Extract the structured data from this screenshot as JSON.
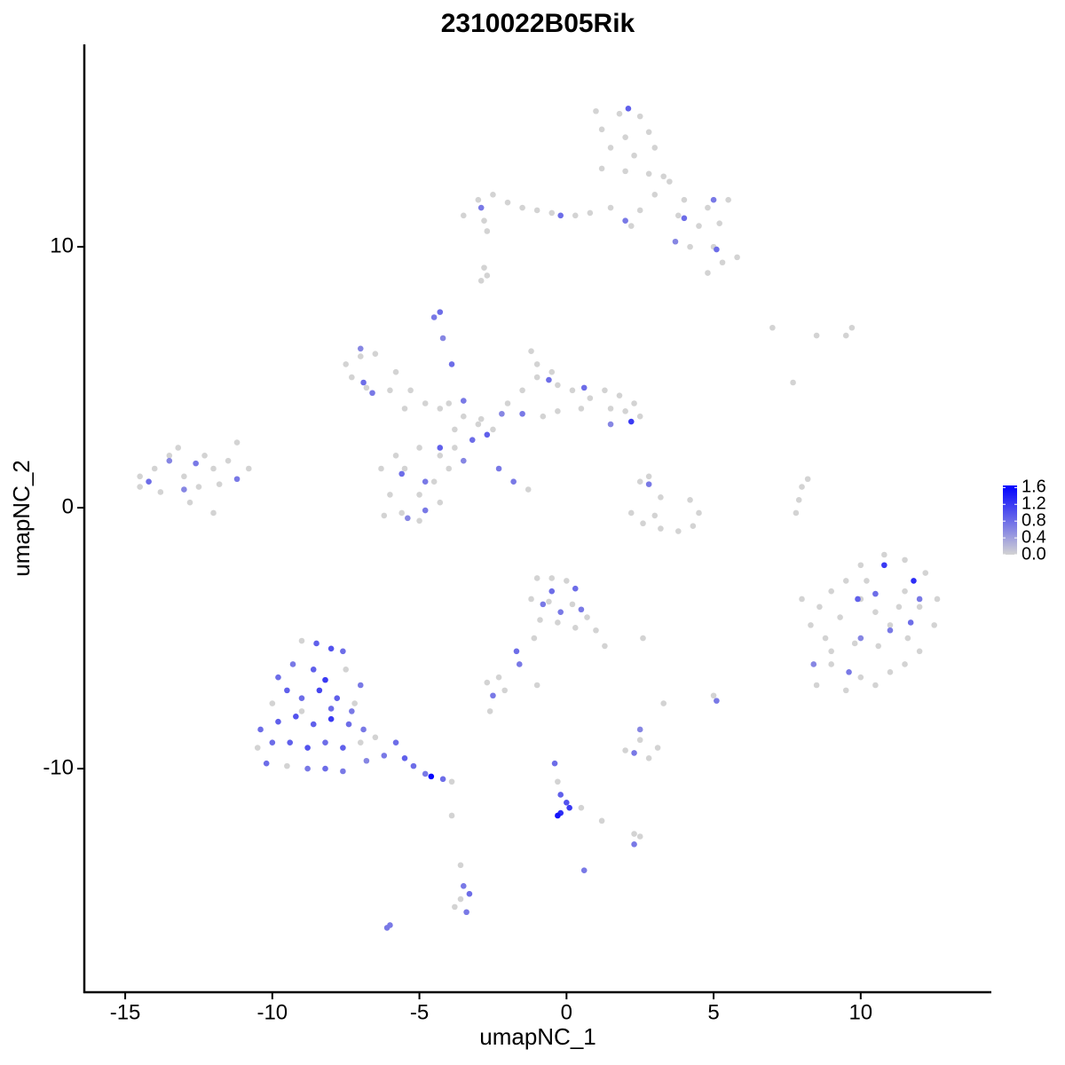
{
  "chart_data": {
    "type": "scatter",
    "title": "2310022B05Rik",
    "x_label": "umapNC_1",
    "y_label": "umapNC_2",
    "xlim": [
      -16.39,
      14.44
    ],
    "ylim": [
      -18.57,
      17.76
    ],
    "xticks": [
      -15,
      -10,
      -5,
      0,
      5,
      10
    ],
    "yticks": [
      -10,
      0,
      10
    ],
    "color_low": "#D3D3D3",
    "color_high": "#0000FF",
    "colorlim": [
      0,
      1.65
    ],
    "colorticks": [
      {
        "value": 0,
        "label": "0.0"
      },
      0.4,
      0.8,
      1.2,
      1.6
    ],
    "x": [
      1.0,
      1.8,
      2.5,
      1.2,
      2.0,
      2.8,
      1.5,
      2.3,
      3.0,
      1.2,
      2.0,
      2.8,
      3.5,
      3.0,
      4.0,
      4.8,
      5.5,
      3.8,
      4.5,
      5.2,
      1.5,
      2.5,
      2.2,
      4.2,
      5.0,
      5.8,
      5.3,
      4.8,
      3.3,
      0.8,
      2.1,
      2.0,
      4.0,
      3.7,
      5.0,
      5.1,
      -3.5,
      -3.0,
      -2.5,
      -2.0,
      -1.5,
      -1.0,
      -0.5,
      -2.8,
      -2.7,
      0.3,
      -2.9,
      -0.2,
      -2.9,
      -2.7,
      -2.8,
      -7.5,
      -7.0,
      -6.5,
      -7.3,
      -6.8,
      -6.0,
      -5.8,
      -5.3,
      -4.8,
      -4.3,
      -5.5,
      -6.9,
      -6.6,
      -7.0,
      -4.5,
      -4.3,
      -4.2,
      -3.9,
      -4.0,
      -3.5,
      -3.0,
      -2.5,
      -3.8,
      -3.2,
      -2.7,
      -3.5,
      -2.9,
      -2.0,
      -1.5,
      -1.0,
      -1.2,
      -1.0,
      -0.5,
      -0.3,
      0.2,
      0.8,
      1.3,
      1.8,
      2.3,
      2.5,
      2.0,
      1.5,
      0.5,
      -0.8,
      -0.3,
      -1.5,
      -0.6,
      0.6,
      2.2,
      1.5,
      -2.2,
      -6.3,
      -6.0,
      -5.5,
      -5.0,
      -4.5,
      -4.0,
      -4.3,
      -5.0,
      -5.8,
      -5.6,
      -5.0,
      -4.3,
      -6.2,
      -3.8,
      -5.6,
      -4.8,
      -4.3,
      -5.4,
      -4.8,
      -3.5,
      -2.3,
      -1.8,
      -1.3,
      -14.5,
      -14.0,
      -13.5,
      -13.0,
      -12.5,
      -12.0,
      -11.5,
      -11.2,
      -14.5,
      -13.8,
      -12.8,
      -12.3,
      -11.8,
      -13.2,
      -10.8,
      -12.0,
      -14.2,
      -13.5,
      -12.6,
      -13.0,
      -11.2,
      2.5,
      2.8,
      3.2,
      2.2,
      2.6,
      3.2,
      3.8,
      4.3,
      4.5,
      4.2,
      3.0,
      2.8,
      8.0,
      8.2,
      7.9,
      7.8,
      7.0,
      8.5,
      9.7,
      9.5,
      7.7,
      8.0,
      8.3,
      8.8,
      9.0,
      8.5,
      9.5,
      10.0,
      10.5,
      11.0,
      11.5,
      12.0,
      12.5,
      12.6,
      12.2,
      11.5,
      10.8,
      10.0,
      9.5,
      9.0,
      10.0,
      10.5,
      11.0,
      11.5,
      9.3,
      9.8,
      10.6,
      11.6,
      10.2,
      8.6,
      12.0,
      9.0,
      11.3,
      10.8,
      11.8,
      10.5,
      9.9,
      11.0,
      11.7,
      9.6,
      10.0,
      8.4,
      12.0,
      -9.0,
      -8.5,
      -8.0,
      -7.6,
      -9.8,
      -9.3,
      -8.6,
      -8.2,
      -7.5,
      -7.0,
      -10.0,
      -9.5,
      -9.0,
      -8.4,
      -7.8,
      -7.2,
      -10.4,
      -9.8,
      -9.2,
      -8.6,
      -8.0,
      -7.4,
      -6.9,
      -10.5,
      -10.0,
      -9.4,
      -8.8,
      -8.2,
      -7.6,
      -7.0,
      -10.2,
      -9.5,
      -8.8,
      -8.2,
      -7.6,
      -9.0,
      -8.0,
      -7.3,
      -6.5,
      -6.2,
      -5.8,
      -5.5,
      -5.2,
      -4.8,
      -4.6,
      -4.2,
      -3.9,
      -6.8,
      -1.0,
      -0.5,
      0,
      -1.2,
      -0.6,
      0.2,
      0.7,
      1.0,
      1.3,
      -0.9,
      -0.3,
      0.3,
      -0.5,
      0.3,
      -0.8,
      0.5,
      -0.2,
      -1.1,
      -1.6,
      -1.7,
      -2.7,
      -2.3,
      -2.1,
      -2.5,
      -1.0,
      -2.6,
      2.0,
      2.5,
      2.8,
      3.1,
      2.3,
      2.5,
      3.3,
      2.6,
      5.0,
      5.1,
      -0.4,
      -0.3,
      -0.2,
      0,
      -0.2,
      -0.3,
      0.1,
      0.5,
      1.2,
      2.3,
      2.5,
      2.3,
      -3.6,
      -3.5,
      -3.3,
      -3.6,
      -3.4,
      -3.8,
      0.6,
      -6.1,
      -6.0,
      -3.9
    ],
    "y": [
      15.2,
      15.1,
      15.0,
      14.5,
      14.2,
      14.4,
      13.8,
      13.5,
      13.8,
      13.0,
      12.9,
      12.8,
      12.5,
      12.0,
      11.8,
      11.5,
      11.8,
      11.2,
      10.8,
      10.9,
      11.5,
      11.4,
      10.8,
      10.0,
      10.0,
      9.6,
      9.4,
      9.0,
      12.7,
      11.3,
      15.3,
      11.0,
      11.1,
      10.2,
      11.8,
      9.9,
      11.2,
      11.8,
      12.0,
      11.7,
      11.5,
      11.4,
      11.3,
      11.0,
      10.6,
      11.2,
      11.5,
      11.2,
      8.7,
      8.9,
      9.2,
      5.5,
      5.8,
      5.9,
      5.0,
      4.6,
      4.5,
      5.2,
      4.5,
      4.0,
      3.8,
      3.8,
      4.8,
      4.4,
      6.1,
      7.3,
      7.5,
      6.5,
      5.5,
      4.0,
      3.5,
      3.2,
      3.0,
      3.0,
      2.6,
      2.8,
      4.1,
      3.4,
      4.0,
      4.5,
      5.0,
      6.0,
      5.5,
      5.2,
      4.7,
      4.5,
      4.2,
      4.5,
      4.3,
      4.0,
      3.5,
      3.7,
      3.8,
      3.8,
      3.5,
      3.7,
      3.6,
      4.9,
      4.6,
      3.3,
      3.2,
      3.6,
      1.5,
      0.5,
      1.5,
      0.5,
      1.0,
      1.5,
      2.0,
      2.3,
      2.0,
      -0.2,
      -0.5,
      0.2,
      -0.3,
      2.3,
      1.3,
      1.0,
      2.3,
      -0.4,
      -0.1,
      1.8,
      1.5,
      1.0,
      0.7,
      0.8,
      1.5,
      2.0,
      1.2,
      0.8,
      1.5,
      1.8,
      2.5,
      1.2,
      0.6,
      0.2,
      2.0,
      0.9,
      2.3,
      1.5,
      -0.2,
      1.0,
      1.8,
      1.7,
      0.7,
      1.1,
      1.0,
      1.2,
      0.4,
      -0.2,
      -0.6,
      -0.8,
      -0.9,
      -0.7,
      -0.2,
      0.3,
      -0.3,
      0.9,
      0.8,
      1.1,
      0.3,
      -0.2,
      6.9,
      6.6,
      6.9,
      6.6,
      4.8,
      -3.5,
      -4.5,
      -5.0,
      -6.0,
      -6.8,
      -7.0,
      -6.5,
      -6.8,
      -6.3,
      -6.0,
      -5.5,
      -4.5,
      -3.5,
      -2.5,
      -2.0,
      -1.8,
      -2.2,
      -2.8,
      -3.2,
      -3.5,
      -4.0,
      -4.5,
      -3.2,
      -4.2,
      -5.2,
      -5.3,
      -5.0,
      -2.8,
      -3.8,
      -3.8,
      -5.5,
      -3.8,
      -2.2,
      -2.8,
      -3.3,
      -3.5,
      -4.7,
      -4.4,
      -6.3,
      -5.0,
      -6.0,
      -3.5,
      -5.1,
      -5.2,
      -5.4,
      -5.5,
      -6.5,
      -6.0,
      -6.2,
      -6.6,
      -6.2,
      -6.8,
      -7.5,
      -7.0,
      -7.3,
      -7.0,
      -7.3,
      -7.5,
      -8.5,
      -8.2,
      -8.0,
      -8.3,
      -8.1,
      -8.3,
      -8.5,
      -9.2,
      -9.0,
      -9.0,
      -9.2,
      -9.0,
      -9.2,
      -9.0,
      -9.8,
      -9.9,
      -10.0,
      -10.0,
      -10.1,
      -7.8,
      -7.7,
      -7.8,
      -8.8,
      -9.5,
      -9.0,
      -9.6,
      -9.9,
      -10.2,
      -10.3,
      -10.4,
      -10.5,
      -9.7,
      -2.7,
      -2.7,
      -2.8,
      -3.5,
      -3.6,
      -3.7,
      -4.2,
      -4.7,
      -5.3,
      -4.3,
      -4.4,
      -4.6,
      -3.2,
      -3.1,
      -3.7,
      -3.9,
      -4.0,
      -5.0,
      -6.0,
      -5.5,
      -6.7,
      -6.5,
      -7.0,
      -7.2,
      -6.8,
      -7.8,
      -9.3,
      -8.9,
      -9.6,
      -9.2,
      -9.4,
      -8.5,
      -7.5,
      -5.0,
      -7.2,
      -7.4,
      -9.8,
      -10.5,
      -11.0,
      -11.3,
      -11.7,
      -11.8,
      -11.5,
      -11.5,
      -12.0,
      -12.5,
      -12.6,
      -12.9,
      -13.7,
      -14.5,
      -14.8,
      -15.0,
      -15.5,
      -15.3,
      -13.9,
      -16.1,
      -16.0,
      -11.8
    ],
    "values": [
      0,
      0,
      0,
      0,
      0,
      0,
      0,
      0,
      0,
      0,
      0,
      0,
      0,
      0,
      0,
      0,
      0,
      0,
      0,
      0,
      0,
      0,
      0,
      0,
      0,
      0,
      0,
      0,
      0,
      0,
      0.9,
      0.7,
      0.8,
      0.6,
      0.7,
      0.8,
      0,
      0,
      0,
      0,
      0,
      0,
      0,
      0,
      0,
      0,
      0.7,
      0.8,
      0,
      0,
      0,
      0,
      0,
      0,
      0,
      0,
      0,
      0,
      0,
      0,
      0,
      0,
      0.8,
      0.7,
      0.6,
      0.7,
      0.8,
      0.6,
      0.8,
      0,
      0,
      0,
      0,
      0,
      0.8,
      0.9,
      0.7,
      0,
      0,
      0,
      0,
      0,
      0,
      0,
      0,
      0,
      0,
      0,
      0,
      0,
      0,
      0,
      0,
      0,
      0,
      0,
      0.7,
      0.8,
      0.8,
      1.2,
      0.6,
      0.6,
      0,
      0,
      0,
      0,
      0,
      0,
      0,
      0,
      0,
      0,
      0,
      0,
      0,
      0,
      0.8,
      0.7,
      0.9,
      0.6,
      0.7,
      0.6,
      0.7,
      0.7,
      0,
      0,
      0,
      0,
      0,
      0,
      0,
      0,
      0,
      0,
      0,
      0,
      0,
      0,
      0,
      0,
      0,
      0.8,
      0.6,
      0.7,
      0.6,
      0.7,
      0,
      0,
      0,
      0,
      0,
      0,
      0,
      0,
      0,
      0,
      0,
      0.7,
      0,
      0,
      0,
      0,
      0,
      0,
      0,
      0,
      0,
      0,
      0,
      0,
      0,
      0,
      0,
      0,
      0,
      0,
      0,
      0,
      0,
      0,
      0,
      0,
      0,
      0,
      0,
      0,
      0,
      0,
      0,
      0,
      0,
      0,
      0,
      0,
      0,
      0,
      0,
      0,
      0,
      1.2,
      1.3,
      0.8,
      0.9,
      0.7,
      0.8,
      0.7,
      0.6,
      0.6,
      0.7,
      0,
      0.9,
      1.0,
      0.8,
      0.8,
      0.7,
      0.9,
      1.2,
      0,
      0.7,
      0,
      0.9,
      0.8,
      1.1,
      0.9,
      0,
      0.8,
      0.9,
      1.0,
      0.9,
      1.2,
      0.8,
      0.7,
      0,
      0.8,
      0.9,
      1.0,
      0.8,
      0.9,
      0,
      0.8,
      0,
      0.7,
      0.8,
      0.7,
      0,
      0.8,
      0.7,
      0,
      0.7,
      0.8,
      0.9,
      0.8,
      0.7,
      1.6,
      0.8,
      0,
      0.6,
      0,
      0,
      0,
      0,
      0,
      0,
      0,
      0,
      0,
      0,
      0,
      0,
      0.8,
      0.8,
      0.7,
      0.7,
      0.7,
      0,
      0.7,
      0.8,
      0,
      0,
      0,
      0.7,
      0,
      0,
      0,
      0,
      0,
      0,
      0.7,
      0.6,
      0,
      0,
      0,
      0.7,
      0.8,
      0,
      0.9,
      1.0,
      1.3,
      1.5,
      1.2,
      0,
      0,
      0,
      0,
      0.7,
      0,
      0.7,
      0.8,
      0,
      0.7,
      0,
      0.7,
      0.7,
      0.7,
      0
    ]
  }
}
